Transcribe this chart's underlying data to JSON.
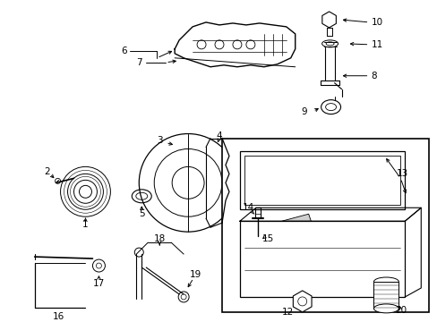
{
  "background_color": "#ffffff",
  "line_color": "#000000",
  "text_color": "#000000",
  "font_size": 7.5,
  "fig_width": 4.89,
  "fig_height": 3.6,
  "dpi": 100
}
